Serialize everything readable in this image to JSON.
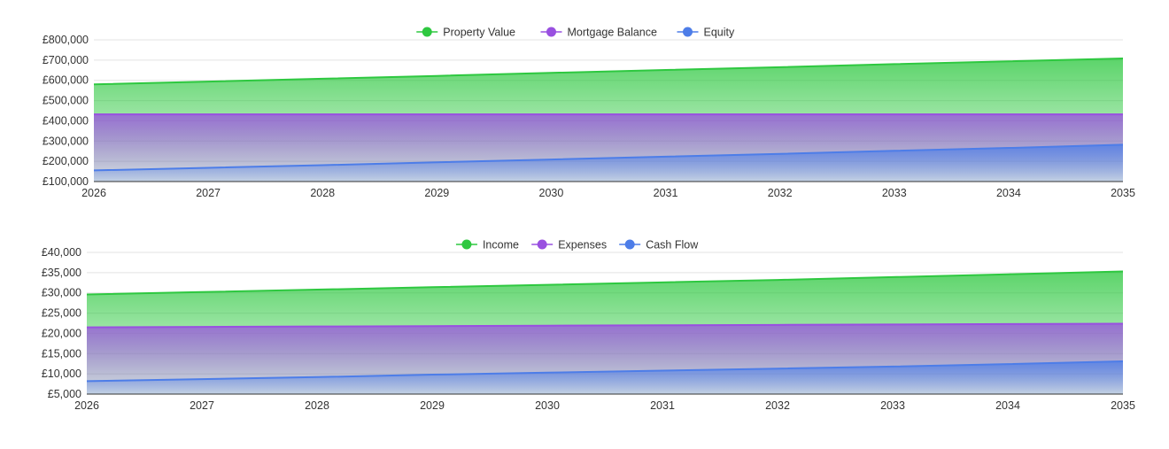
{
  "colors": {
    "green": "#2ec840",
    "purple": "#9950e0",
    "blue": "#4d7de8",
    "grid": "#e3e3e3",
    "axis": "#333333",
    "text": "#333333"
  },
  "chart_data": [
    {
      "type": "area",
      "x": [
        2026,
        2027,
        2028,
        2029,
        2030,
        2031,
        2032,
        2033,
        2034,
        2035
      ],
      "ylim": [
        100000,
        800000
      ],
      "yticks": [
        "£100,000",
        "£200,000",
        "£300,000",
        "£400,000",
        "£500,000",
        "£600,000",
        "£700,000",
        "£800,000"
      ],
      "ytick_values": [
        100000,
        200000,
        300000,
        400000,
        500000,
        600000,
        700000,
        800000
      ],
      "legend_position": "top-center",
      "grid": true,
      "series": [
        {
          "name": "Property Value",
          "color": "#2ec840",
          "values": [
            580000,
            594000,
            608000,
            622000,
            637000,
            651000,
            665000,
            680000,
            694000,
            708000
          ]
        },
        {
          "name": "Mortgage Balance",
          "color": "#9950e0",
          "values": [
            432000,
            432000,
            432000,
            432000,
            432000,
            432000,
            432000,
            432000,
            432000,
            432000
          ]
        },
        {
          "name": "Equity",
          "color": "#4d7de8",
          "values": [
            155000,
            168000,
            181000,
            195000,
            209000,
            223000,
            237000,
            252000,
            266000,
            282000
          ]
        }
      ]
    },
    {
      "type": "area",
      "x": [
        2026,
        2027,
        2028,
        2029,
        2030,
        2031,
        2032,
        2033,
        2034,
        2035
      ],
      "ylim": [
        5000,
        40000
      ],
      "yticks": [
        "£5,000",
        "£10,000",
        "£15,000",
        "£20,000",
        "£25,000",
        "£30,000",
        "£35,000",
        "£40,000"
      ],
      "ytick_values": [
        5000,
        10000,
        15000,
        20000,
        25000,
        30000,
        35000,
        40000
      ],
      "legend_position": "top-center",
      "grid": true,
      "series": [
        {
          "name": "Income",
          "color": "#2ec840",
          "values": [
            29600,
            30200,
            30800,
            31400,
            32000,
            32600,
            33200,
            33900,
            34600,
            35300
          ]
        },
        {
          "name": "Expenses",
          "color": "#9950e0",
          "values": [
            21500,
            21600,
            21700,
            21800,
            21900,
            22000,
            22100,
            22200,
            22300,
            22400
          ]
        },
        {
          "name": "Cash Flow",
          "color": "#4d7de8",
          "values": [
            8200,
            8700,
            9200,
            9800,
            10300,
            10800,
            11300,
            11800,
            12400,
            13100
          ]
        }
      ]
    }
  ]
}
